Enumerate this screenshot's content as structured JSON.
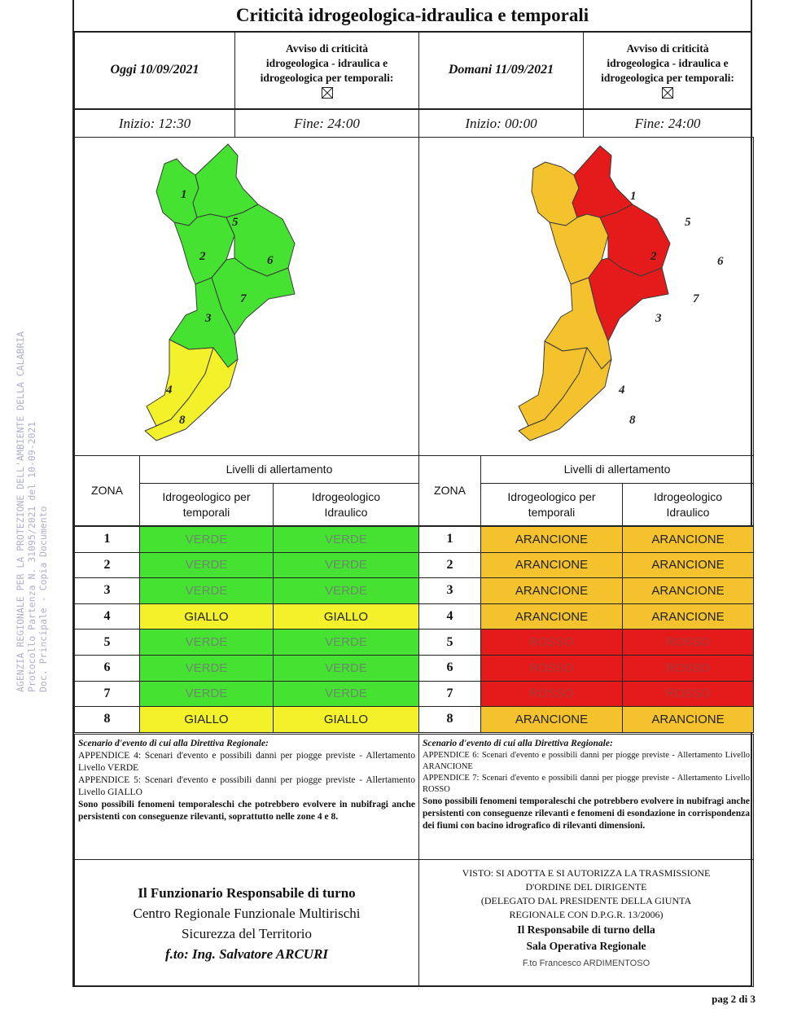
{
  "title": "Criticità idrogeologica-idraulica e temporali",
  "today": {
    "date_label": "Oggi 10/09/2021",
    "avviso_line1": "Avviso di criticità",
    "avviso_line2": "idrogeologica - idraulica e",
    "avviso_line3": "idrogeologica per temporali:",
    "inizio": "Inizio: 12:30",
    "fine": "Fine: 24:00",
    "map_zone_labels": [
      "1",
      "2",
      "3",
      "4",
      "5",
      "6",
      "7",
      "8"
    ],
    "map_colors": {
      "green": "#46e232",
      "yellow": "#f3f22a"
    }
  },
  "tomorrow": {
    "date_label": "Domani 11/09/2021",
    "avviso_line1": "Avviso di criticità",
    "avviso_line2": "idrogeologica - idraulica e",
    "avviso_line3": "idrogeologica per temporali:",
    "inizio": "Inizio: 00:00",
    "fine": "Fine: 24:00",
    "map_zone_labels": [
      "1",
      "2",
      "3",
      "4",
      "5",
      "6",
      "7",
      "8"
    ],
    "map_colors": {
      "orange": "#f3c22c",
      "red": "#e51b1b"
    }
  },
  "table_left": {
    "zona_header": "ZONA",
    "livelli_header": "Livelli di allertamento",
    "col1_line1": "Idrogeologico per",
    "col1_line2": "temporali",
    "col2_line1": "Idrogeologico",
    "col2_line2": "Idraulico",
    "rows": [
      {
        "zona": "1",
        "a": "VERDE",
        "b": "VERDE"
      },
      {
        "zona": "2",
        "a": "VERDE",
        "b": "VERDE"
      },
      {
        "zona": "3",
        "a": "VERDE",
        "b": "VERDE"
      },
      {
        "zona": "4",
        "a": "GIALLO",
        "b": "GIALLO"
      },
      {
        "zona": "5",
        "a": "VERDE",
        "b": "VERDE"
      },
      {
        "zona": "6",
        "a": "VERDE",
        "b": "VERDE"
      },
      {
        "zona": "7",
        "a": "VERDE",
        "b": "VERDE"
      },
      {
        "zona": "8",
        "a": "GIALLO",
        "b": "GIALLO"
      }
    ]
  },
  "table_right": {
    "zona_header": "ZONA",
    "livelli_header": "Livelli di allertamento",
    "col1_line1": "Idrogeologico per",
    "col1_line2": "temporali",
    "col2_line1": "Idrogeologico",
    "col2_line2": "Idraulico",
    "rows": [
      {
        "zona": "1",
        "a": "ARANCIONE",
        "b": "ARANCIONE"
      },
      {
        "zona": "2",
        "a": "ARANCIONE",
        "b": "ARANCIONE"
      },
      {
        "zona": "3",
        "a": "ARANCIONE",
        "b": "ARANCIONE"
      },
      {
        "zona": "4",
        "a": "ARANCIONE",
        "b": "ARANCIONE"
      },
      {
        "zona": "5",
        "a": "ROSSO",
        "b": "ROSSO"
      },
      {
        "zona": "6",
        "a": "ROSSO",
        "b": "ROSSO"
      },
      {
        "zona": "7",
        "a": "ROSSO",
        "b": "ROSSO"
      },
      {
        "zona": "8",
        "a": "ARANCIONE",
        "b": "ARANCIONE"
      }
    ]
  },
  "scenario_left": {
    "heading": "Scenario d'evento di cui alla Direttiva Regionale:",
    "p1": "APPENDICE 4: Scenari d'evento e possibili danni per piogge previste - Allertamento Livello VERDE",
    "p2": "APPENDICE 5: Scenari d'evento e possibili danni per piogge previste - Allertamento Livello GIALLO",
    "p3": "Sono possibili fenomeni temporaleschi che potrebbero evolvere in nubifragi anche persistenti con conseguenze rilevanti, soprattutto nelle zone 4 e 8."
  },
  "scenario_right": {
    "heading": "Scenario d'evento di cui alla Direttiva Regionale:",
    "p1": "APPENDICE 6: Scenari d'evento e possibili danni per piogge previste - Allertamento Livello ARANCIONE",
    "p2": "APPENDICE 7: Scenari d'evento e possibili danni per piogge previste - Allertamento Livello ROSSO",
    "p3": "Sono possibili fenomeni temporaleschi che potrebbero evolvere in nubifragi anche persistenti con conseguenze rilevanti e fenomeni di esondazione in corrispondenza dei fiumi con bacino idrografico di rilevanti dimensioni."
  },
  "footer_left": {
    "line1": "Il Funzionario Responsabile di turno",
    "line2": "Centro Regionale Funzionale Multirischi",
    "line3": "Sicurezza del Territorio",
    "line4": "f.to: Ing. Salvatore ARCURI"
  },
  "footer_right": {
    "line1": "VISTO: SI ADOTTA E SI AUTORIZZA LA TRASMISSIONE",
    "line2": "D'ORDINE DEL DIRIGENTE",
    "line3": "(DELEGATO DAL PRESIDENTE DELLA GIUNTA",
    "line4": "REGIONALE CON D.P.G.R. 13/2006)",
    "line5": "Il Responsabile di turno della",
    "line6": "Sala Operativa Regionale",
    "line7": "F.to Francesco ARDIMENTOSO"
  },
  "watermark": {
    "line1": "AGENZIA REGIONALE PER LA PROTEZIONE DELL'AMBIENTE DELLA CALABRIA",
    "line2": "Protocollo Partenza N. 31095/2021 del 10-09-2021",
    "line3": "Doc. Principale - Copia Documento"
  },
  "page_label": "pag 2 di 3",
  "level_colors": {
    "VERDE": "#46e232",
    "GIALLO": "#f3f22a",
    "ARANCIONE": "#f3c22c",
    "ROSSO": "#e51b1b"
  }
}
